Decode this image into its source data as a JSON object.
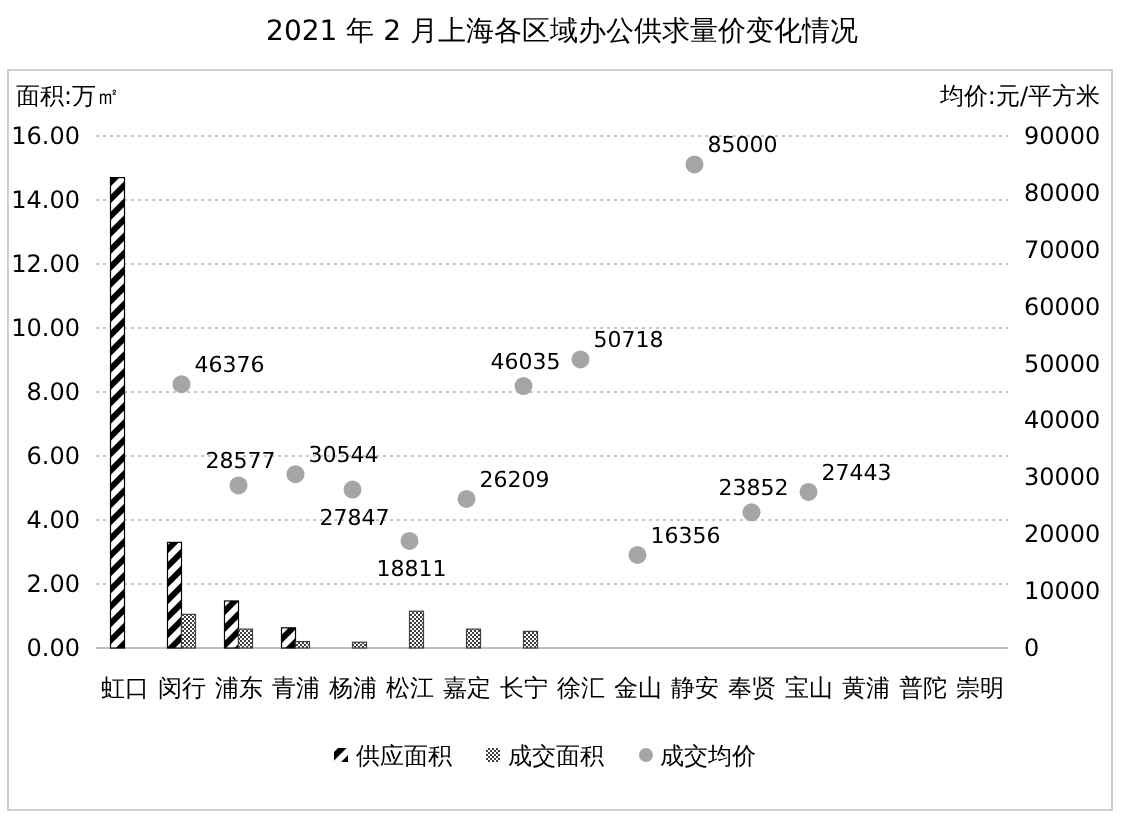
{
  "chart_data": {
    "type": "bar",
    "title": "2021 年 2 月上海各区域办公供求量价变化情况",
    "ylabel": "面积:万㎡",
    "y2label": "均价:元/平方米",
    "categories": [
      "虹口",
      "闵行",
      "浦东",
      "青浦",
      "杨浦",
      "松江",
      "嘉定",
      "长宁",
      "徐汇",
      "金山",
      "静安",
      "奉贤",
      "宝山",
      "黄浦",
      "普陀",
      "崇明"
    ],
    "series": [
      {
        "name": "供应面积",
        "color": "#000000",
        "values": [
          14.7,
          3.3,
          1.47,
          0.63,
          0,
          0,
          0,
          0,
          0,
          0,
          0,
          0,
          0,
          0,
          0,
          0
        ]
      },
      {
        "name": "成交面积",
        "color": "#404040",
        "values": [
          0,
          1.05,
          0.59,
          0.2,
          0.18,
          1.15,
          0.59,
          0.52,
          0,
          0,
          0,
          0,
          0,
          0,
          0,
          0
        ]
      },
      {
        "name": "成交均价",
        "type": "scatter",
        "axis": "y2",
        "color": "#a5a5a5",
        "values": [
          null,
          46376,
          28577,
          30544,
          27847,
          18811,
          26209,
          46035,
          50718,
          16356,
          85000,
          23852,
          27443,
          null,
          null,
          null
        ],
        "value_labels": [
          null,
          "46376",
          "28577",
          "30544",
          "27847",
          "18811",
          "26209",
          "46035",
          "50718",
          "16356",
          "85000",
          "23852",
          "27443",
          null,
          null,
          null
        ]
      }
    ],
    "ylim": [
      0,
      16
    ],
    "yticks": [
      {
        "value": 0,
        "label": "0.00"
      },
      {
        "value": 2,
        "label": "2.00"
      },
      {
        "value": 4,
        "label": "4.00"
      },
      {
        "value": 6,
        "label": "6.00"
      },
      {
        "value": 8,
        "label": "8.00"
      },
      {
        "value": 10,
        "label": "10.00"
      },
      {
        "value": 12,
        "label": "12.00"
      },
      {
        "value": 14,
        "label": "14.00"
      },
      {
        "value": 16,
        "label": "16.00"
      }
    ],
    "y2lim": [
      0,
      90000
    ],
    "y2ticks": [
      0,
      10000,
      20000,
      30000,
      40000,
      50000,
      60000,
      70000,
      80000,
      90000
    ],
    "grid": "y",
    "legend": "bottom",
    "marker": "circle"
  }
}
